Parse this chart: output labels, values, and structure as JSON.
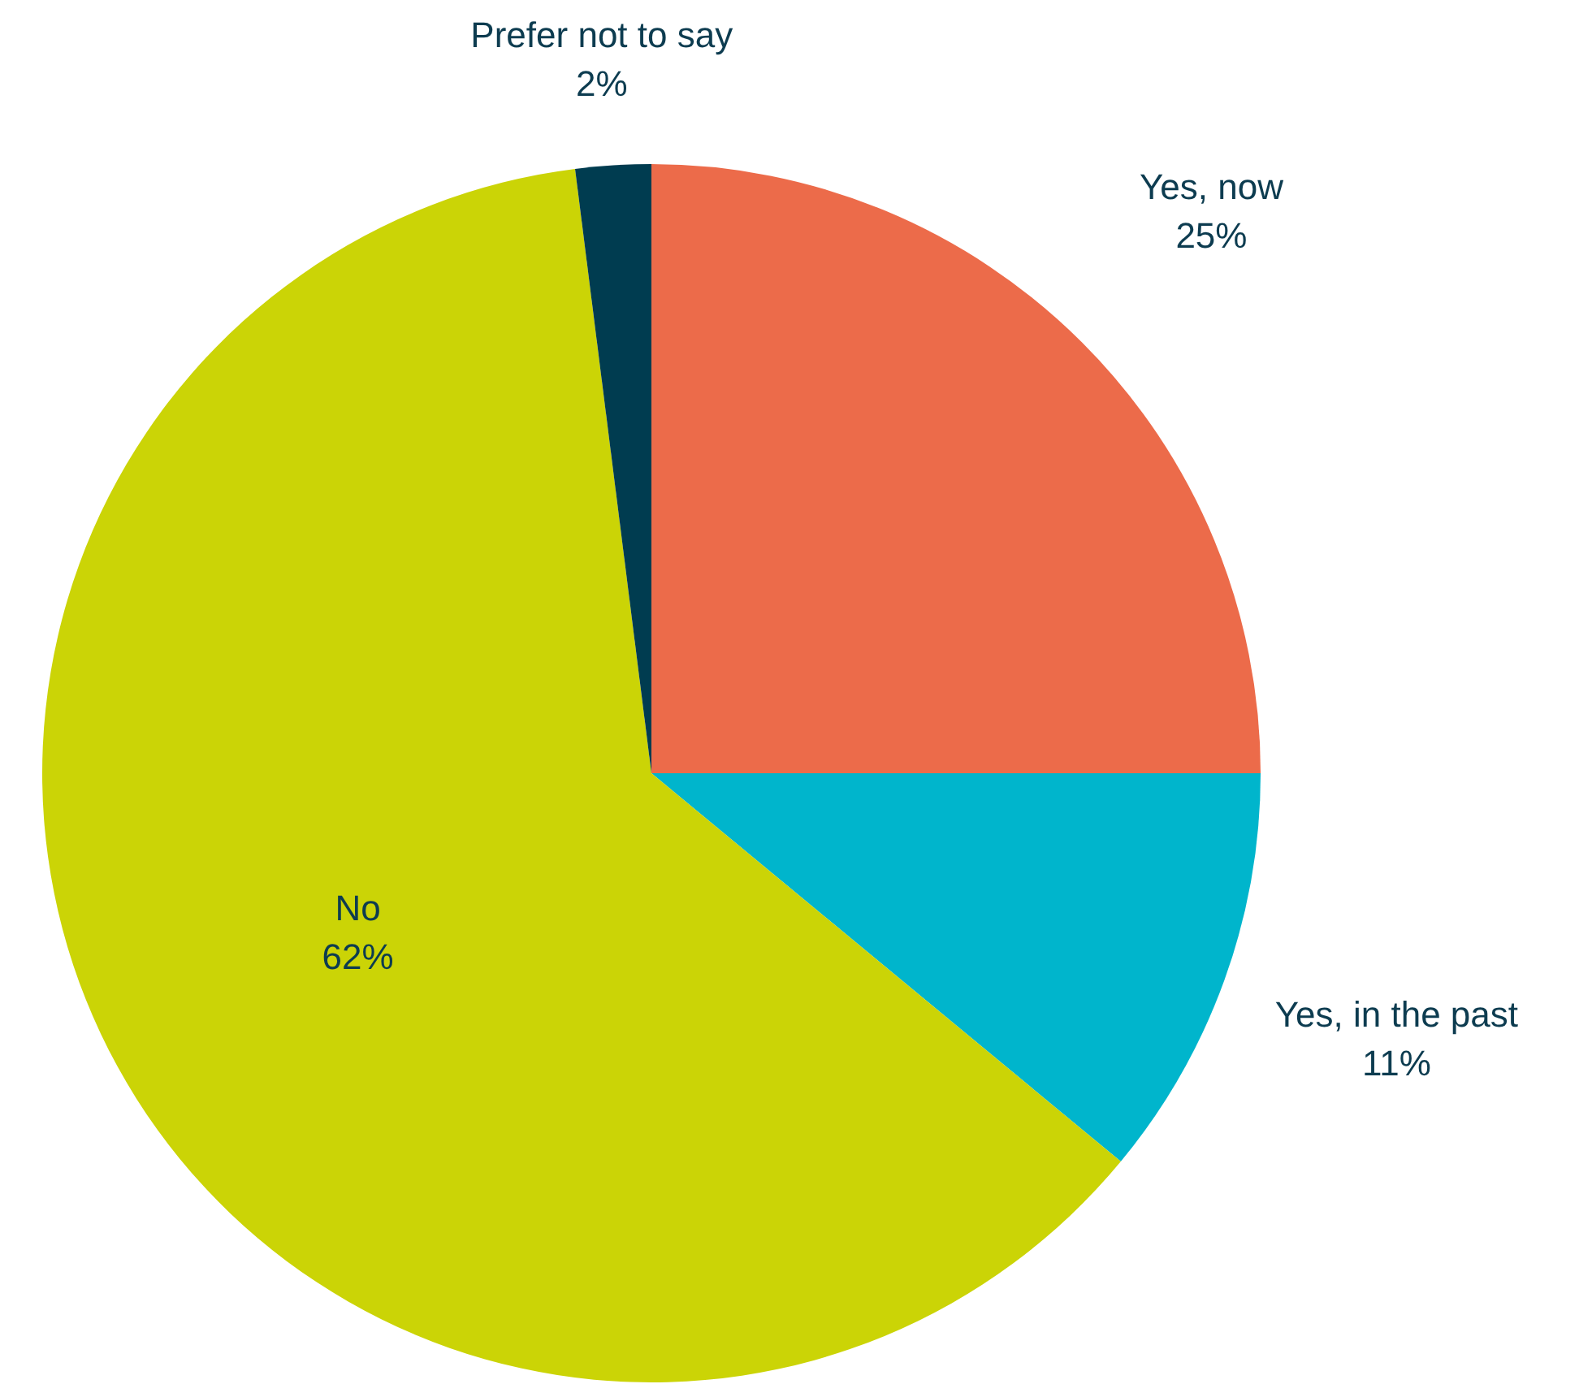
{
  "chart_data": {
    "type": "pie",
    "categories": [
      "Yes, now",
      "Yes, in the past",
      "No",
      "Prefer not to say"
    ],
    "values": [
      25,
      11,
      62,
      2
    ],
    "colors": [
      "#ec6b4a",
      "#00b5cc",
      "#cbd406",
      "#003c50"
    ],
    "value_labels": [
      "25%",
      "11%",
      "62%",
      "2%"
    ],
    "legend": false
  }
}
